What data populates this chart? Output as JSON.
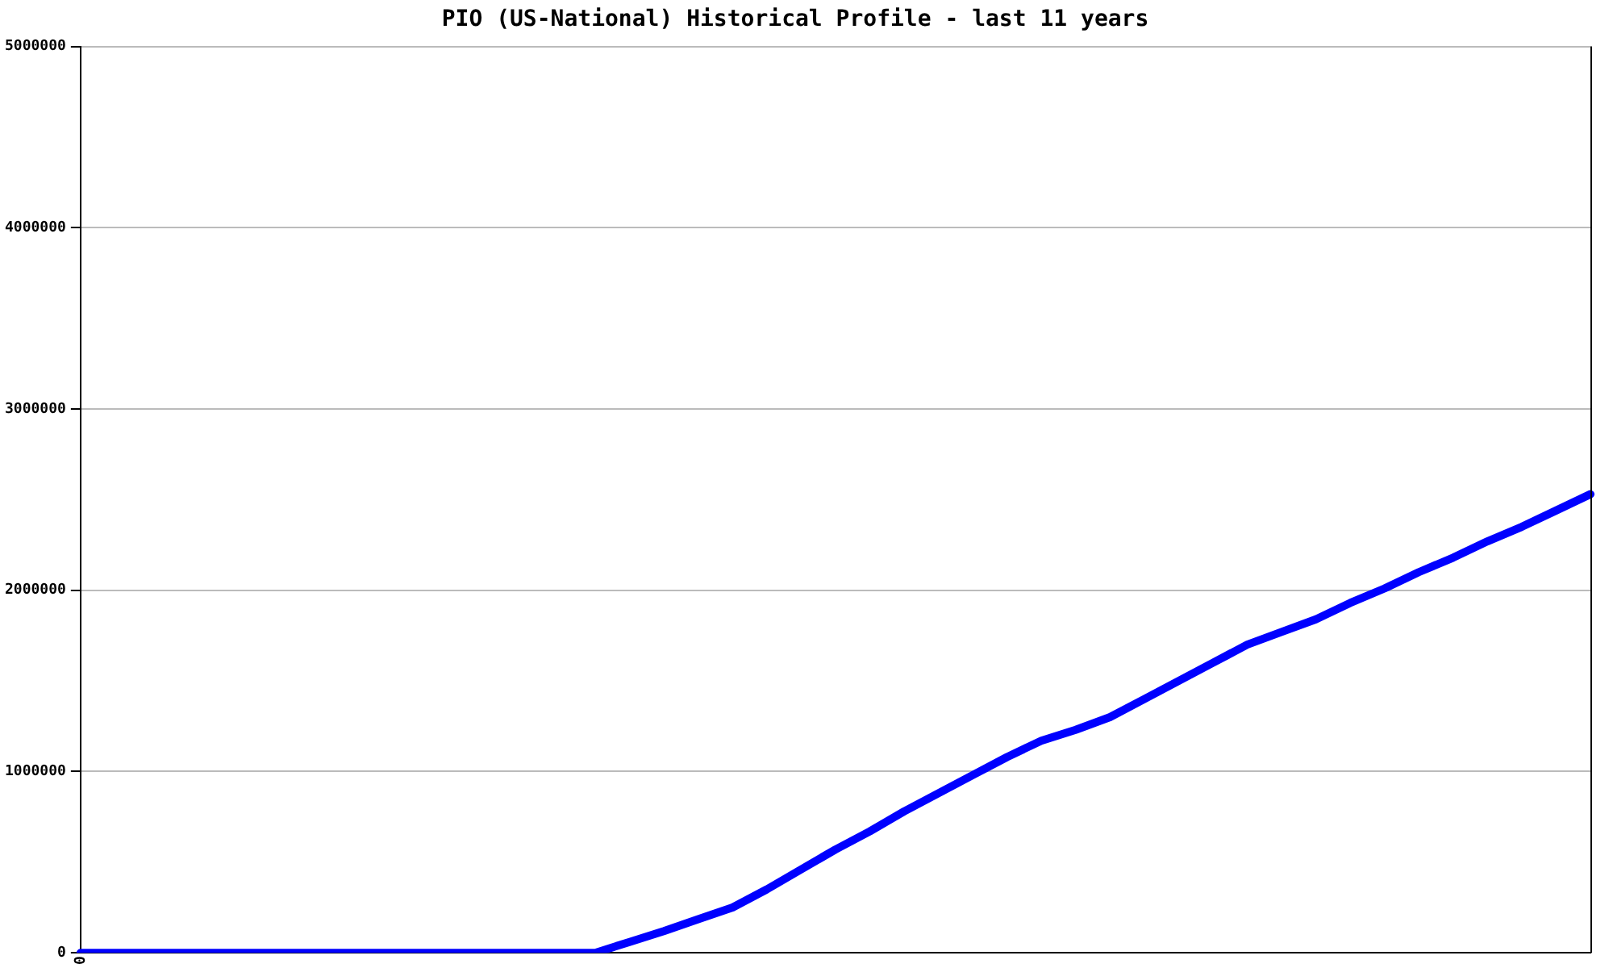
{
  "chart_data": {
    "type": "line",
    "title": "PIO (US-National) Historical Profile - last 11 years",
    "categories": [
      "0",
      null,
      null,
      null,
      null,
      null,
      null,
      null,
      null,
      null,
      null,
      null,
      null,
      null,
      null,
      null,
      null,
      null,
      null,
      null,
      null,
      null,
      null,
      null,
      null,
      null,
      null,
      null,
      null,
      null,
      null,
      null,
      null,
      null,
      null,
      null,
      null,
      null,
      null,
      null,
      null,
      null,
      null,
      null,
      null
    ],
    "series": [
      {
        "color": "#0000ff",
        "values": [
          0,
          0,
          0,
          0,
          0,
          0,
          0,
          0,
          0,
          0,
          0,
          0,
          0,
          0,
          0,
          0,
          60000,
          120000,
          185000,
          250000,
          350000,
          460000,
          570000,
          670000,
          780000,
          880000,
          980000,
          1080000,
          1170000,
          1230000,
          1300000,
          1400000,
          1500000,
          1600000,
          1700000,
          1770000,
          1840000,
          1930000,
          2010000,
          2100000,
          2180000,
          2270000,
          2350000,
          2440000,
          2530000
        ]
      }
    ],
    "ylim": [
      0,
      5000000
    ],
    "yticks": [
      0,
      1000000,
      2000000,
      3000000,
      4000000,
      5000000
    ],
    "grid": "y",
    "legend": false,
    "marker": "none",
    "line_style": "solid"
  }
}
